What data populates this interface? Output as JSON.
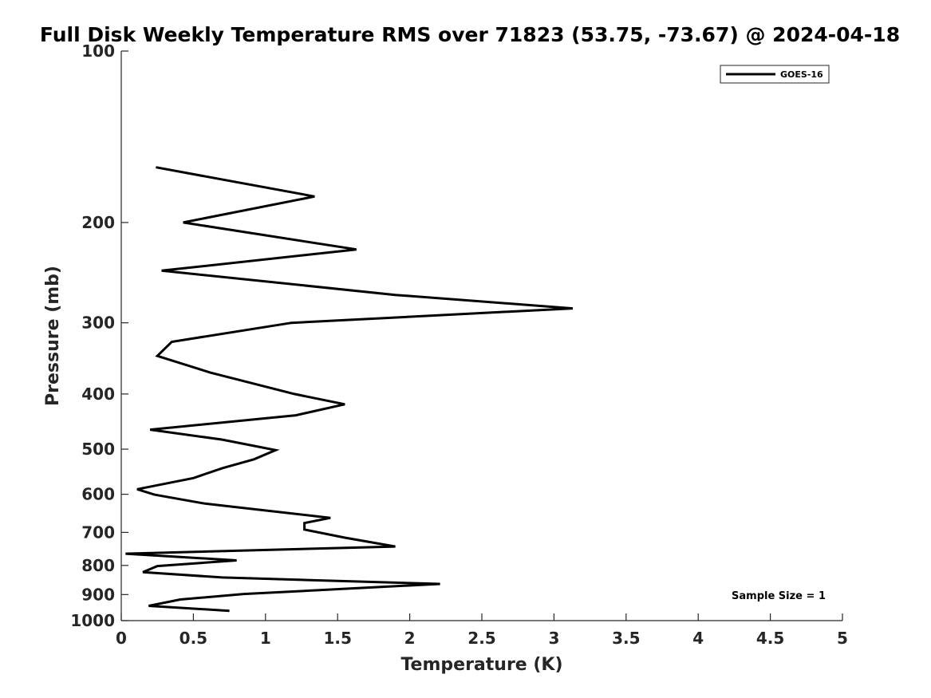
{
  "chart_data": {
    "type": "line",
    "title": "Full Disk Weekly Temperature RMS over 71823 (53.75, -73.67) @ 2024-04-18",
    "xlabel": "Temperature (K)",
    "ylabel": "Pressure (mb)",
    "xlim": [
      0,
      5
    ],
    "ylim": [
      100,
      1000
    ],
    "y_scale": "log",
    "y_reversed": true,
    "xticks": [
      0,
      0.5,
      1,
      1.5,
      2,
      2.5,
      3,
      3.5,
      4,
      4.5,
      5
    ],
    "xtick_labels": [
      "0",
      "0.5",
      "1",
      "1.5",
      "2",
      "2.5",
      "3",
      "3.5",
      "4",
      "4.5",
      "5"
    ],
    "yticks": [
      100,
      200,
      300,
      400,
      500,
      600,
      700,
      800,
      900,
      1000
    ],
    "ytick_labels": [
      "100",
      "200",
      "300",
      "400",
      "500",
      "600",
      "700",
      "800",
      "900",
      "1000"
    ],
    "grid": false,
    "legend_position": "top-right",
    "series": [
      {
        "name": "GOES-16",
        "color": "#000000",
        "points": [
          {
            "x": 0.24,
            "y": 160
          },
          {
            "x": 1.34,
            "y": 180
          },
          {
            "x": 0.43,
            "y": 200
          },
          {
            "x": 1.63,
            "y": 223
          },
          {
            "x": 0.28,
            "y": 243
          },
          {
            "x": 1.9,
            "y": 268
          },
          {
            "x": 3.13,
            "y": 283
          },
          {
            "x": 1.18,
            "y": 300
          },
          {
            "x": 0.35,
            "y": 324
          },
          {
            "x": 0.25,
            "y": 343
          },
          {
            "x": 0.62,
            "y": 367
          },
          {
            "x": 1.2,
            "y": 400
          },
          {
            "x": 1.55,
            "y": 417
          },
          {
            "x": 1.21,
            "y": 436
          },
          {
            "x": 0.2,
            "y": 462
          },
          {
            "x": 0.7,
            "y": 481
          },
          {
            "x": 1.07,
            "y": 502
          },
          {
            "x": 0.92,
            "y": 521
          },
          {
            "x": 0.7,
            "y": 540
          },
          {
            "x": 0.5,
            "y": 562
          },
          {
            "x": 0.11,
            "y": 588
          },
          {
            "x": 0.23,
            "y": 601
          },
          {
            "x": 0.58,
            "y": 623
          },
          {
            "x": 1.45,
            "y": 660
          },
          {
            "x": 1.27,
            "y": 674
          },
          {
            "x": 1.27,
            "y": 692
          },
          {
            "x": 1.55,
            "y": 715
          },
          {
            "x": 1.9,
            "y": 741
          },
          {
            "x": 0.03,
            "y": 763
          },
          {
            "x": 0.8,
            "y": 784
          },
          {
            "x": 0.25,
            "y": 802
          },
          {
            "x": 0.15,
            "y": 822
          },
          {
            "x": 0.7,
            "y": 840
          },
          {
            "x": 2.21,
            "y": 862
          },
          {
            "x": 0.85,
            "y": 898
          },
          {
            "x": 0.41,
            "y": 918
          },
          {
            "x": 0.19,
            "y": 942
          },
          {
            "x": 0.75,
            "y": 961
          }
        ]
      }
    ],
    "annotations": [
      {
        "text": "Sample Size = 1",
        "position": "bottom-right"
      }
    ]
  }
}
